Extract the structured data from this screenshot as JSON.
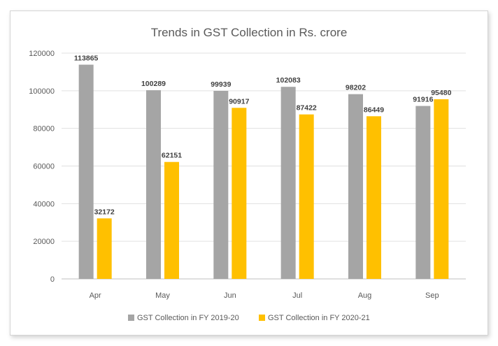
{
  "chart_data": {
    "type": "bar",
    "title": "Trends in GST Collection in Rs. crore",
    "categories": [
      "Apr",
      "May",
      "Jun",
      "Jul",
      "Aug",
      "Sep"
    ],
    "series": [
      {
        "name": "GST Collection in FY 2019-20",
        "color": "#a5a5a5",
        "values": [
          113865,
          100289,
          99939,
          102083,
          98202,
          91916
        ]
      },
      {
        "name": "GST Collection in FY 2020-21",
        "color": "#ffc000",
        "values": [
          32172,
          62151,
          90917,
          87422,
          86449,
          95480
        ]
      }
    ],
    "ylim": [
      0,
      120000
    ],
    "yticks": [
      "0",
      "20000",
      "40000",
      "60000",
      "80000",
      "100000",
      "120000"
    ],
    "grid": true,
    "legend": "bottom"
  }
}
